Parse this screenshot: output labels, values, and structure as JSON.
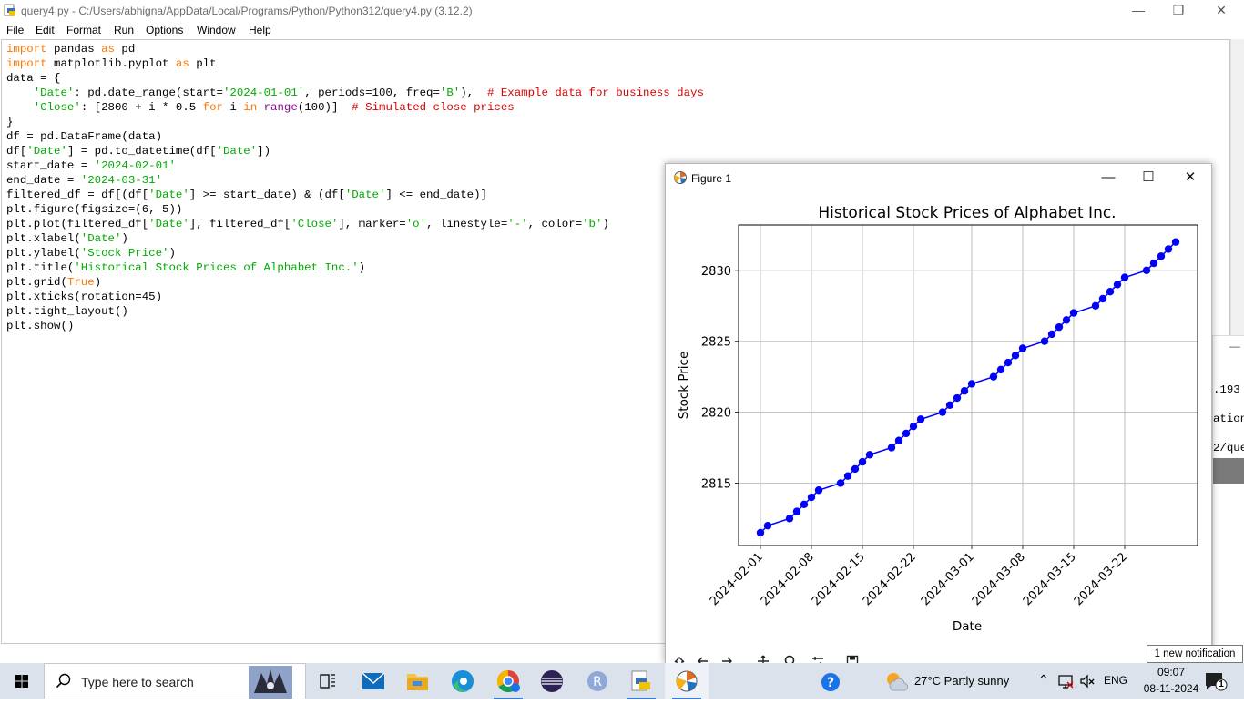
{
  "idle": {
    "title": "query4.py - C:/Users/abhigna/AppData/Local/Programs/Python/Python312/query4.py (3.12.2)",
    "menu": [
      "File",
      "Edit",
      "Format",
      "Run",
      "Options",
      "Window",
      "Help"
    ],
    "code_lines": [
      "import pandas as pd",
      "import matplotlib.pyplot as plt",
      "data = {",
      "    'Date': pd.date_range(start='2024-01-01', periods=100, freq='B'),  # Example data for business days",
      "    'Close': [2800 + i * 0.5 for i in range(100)]  # Simulated close prices",
      "}",
      "df = pd.DataFrame(data)",
      "df['Date'] = pd.to_datetime(df['Date'])",
      "start_date = '2024-02-01'",
      "end_date = '2024-03-31'",
      "filtered_df = df[(df['Date'] >= start_date) & (df['Date'] <= end_date)]",
      "plt.figure(figsize=(6, 5))",
      "plt.plot(filtered_df['Date'], filtered_df['Close'], marker='o', linestyle='-', color='b')",
      "plt.xlabel('Date')",
      "plt.ylabel('Stock Price')",
      "plt.title('Historical Stock Prices of Alphabet Inc.')",
      "plt.grid(True)",
      "plt.xticks(rotation=45)",
      "plt.tight_layout()",
      "plt.show()"
    ]
  },
  "shell_fragments": [
    ".193",
    "ation",
    "2/que"
  ],
  "figure": {
    "window_title": "Figure 1"
  },
  "chart_data": {
    "type": "line",
    "title": "Historical Stock Prices of Alphabet Inc.",
    "xlabel": "Date",
    "ylabel": "Stock Price",
    "grid": true,
    "x_tick_labels": [
      "2024-02-01",
      "2024-02-08",
      "2024-02-15",
      "2024-02-22",
      "2024-03-01",
      "2024-03-08",
      "2024-03-15",
      "2024-03-22"
    ],
    "y_ticks": [
      2815,
      2820,
      2825,
      2830
    ],
    "ylim": [
      2810.6,
      2833.2
    ],
    "xlim": [
      "2024-01-29",
      "2024-04-01"
    ],
    "color": "#0000ff",
    "marker": "o",
    "series": [
      {
        "x": [
          "2024-02-01",
          "2024-02-02",
          "2024-02-05",
          "2024-02-06",
          "2024-02-07",
          "2024-02-08",
          "2024-02-09",
          "2024-02-12",
          "2024-02-13",
          "2024-02-14",
          "2024-02-15",
          "2024-02-16",
          "2024-02-19",
          "2024-02-20",
          "2024-02-21",
          "2024-02-22",
          "2024-02-23",
          "2024-02-26",
          "2024-02-27",
          "2024-02-28",
          "2024-02-29",
          "2024-03-01",
          "2024-03-04",
          "2024-03-05",
          "2024-03-06",
          "2024-03-07",
          "2024-03-08",
          "2024-03-11",
          "2024-03-12",
          "2024-03-13",
          "2024-03-14",
          "2024-03-15",
          "2024-03-18",
          "2024-03-19",
          "2024-03-20",
          "2024-03-21",
          "2024-03-22",
          "2024-03-25",
          "2024-03-26",
          "2024-03-27",
          "2024-03-28",
          "2024-03-29"
        ],
        "y": [
          2811.5,
          2812.0,
          2812.5,
          2813.0,
          2813.5,
          2814.0,
          2814.5,
          2815.0,
          2815.5,
          2816.0,
          2816.5,
          2817.0,
          2817.5,
          2818.0,
          2818.5,
          2819.0,
          2819.5,
          2820.0,
          2820.5,
          2821.0,
          2821.5,
          2822.0,
          2822.5,
          2823.0,
          2823.5,
          2824.0,
          2824.5,
          2825.0,
          2825.5,
          2826.0,
          2826.5,
          2827.0,
          2827.5,
          2828.0,
          2828.5,
          2829.0,
          2829.5,
          2830.0,
          2830.5,
          2831.0,
          2831.5,
          2832.0
        ]
      }
    ]
  },
  "notification": {
    "text": "1 new notification"
  },
  "taskbar": {
    "search_placeholder": "Type here to search",
    "weather": "27°C  Partly sunny",
    "language": "ENG",
    "time": "09:07",
    "date": "08-11-2024",
    "notification_count": "1"
  },
  "colors": {
    "keyword": "#ff7700",
    "string": "#00aa00",
    "builtin": "#900090",
    "comment": "#dd0000",
    "taskbar": "#dbe2ec"
  }
}
